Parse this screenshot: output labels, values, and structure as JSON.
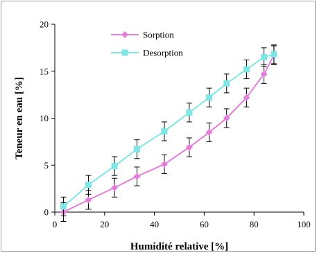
{
  "chart_data": {
    "type": "line",
    "xlabel": "Humidité relative [%]",
    "ylabel": "Teneur en  eau [%]",
    "xlim": [
      0,
      100
    ],
    "ylim": [
      0,
      20
    ],
    "x_ticks": [
      0,
      20,
      40,
      60,
      80,
      100
    ],
    "y_ticks": [
      0,
      5,
      10,
      15,
      20
    ],
    "grid": false,
    "legend_position": "top-left",
    "series": [
      {
        "name": "Sorption",
        "color": "#e37fd8",
        "marker": "diamond",
        "x": [
          3.5,
          13.5,
          24,
          33,
          44,
          54,
          62,
          69,
          77,
          84,
          88
        ],
        "y": [
          0.0,
          1.3,
          2.6,
          3.8,
          5.1,
          6.9,
          8.5,
          10.0,
          12.2,
          14.7,
          16.7
        ],
        "error": [
          1.0,
          1.0,
          1.0,
          1.0,
          1.0,
          1.0,
          1.0,
          1.0,
          1.0,
          1.0,
          1.0
        ]
      },
      {
        "name": "Desorption",
        "color": "#7fe6e6",
        "marker": "square",
        "x": [
          3.5,
          13.5,
          24,
          33,
          44,
          54,
          62,
          69,
          77,
          84,
          88
        ],
        "y": [
          0.6,
          2.9,
          4.9,
          6.7,
          8.6,
          10.6,
          12.2,
          13.7,
          15.2,
          16.5,
          16.8
        ],
        "error": [
          1.0,
          1.0,
          1.0,
          1.0,
          1.0,
          1.0,
          1.0,
          1.0,
          1.0,
          1.0,
          1.0
        ]
      }
    ]
  }
}
